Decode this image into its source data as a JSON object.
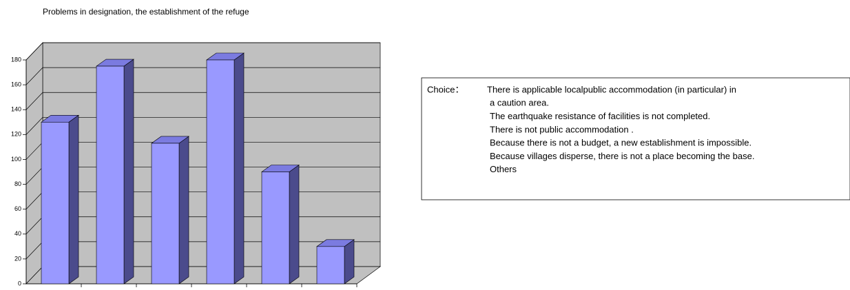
{
  "chart_data": {
    "type": "bar3d",
    "title": "Problems in designation, the establishment of the refuge",
    "categories": [
      null,
      null,
      null,
      null,
      null,
      null
    ],
    "values": [
      130,
      175,
      113,
      180,
      90,
      30
    ],
    "color": "#9999ff",
    "side_color": "#4b4b8c",
    "top_color": "#7b7be0",
    "ylim": [
      0,
      180
    ],
    "yticks": [
      0,
      20,
      40,
      60,
      80,
      100,
      120,
      140,
      160,
      180
    ],
    "grid": true,
    "legend_title": "Choice：",
    "legend_lines": [
      "There is applicable localpublic accommodation (in particular) in",
      "a caution area.",
      "The earthquake resistance of facilities is not completed.",
      "There is not public accommodation .",
      "Because there is not a budget, a new establishment is impossible.",
      "Because villages disperse, there is not a place becoming the base.",
      "Others"
    ]
  }
}
